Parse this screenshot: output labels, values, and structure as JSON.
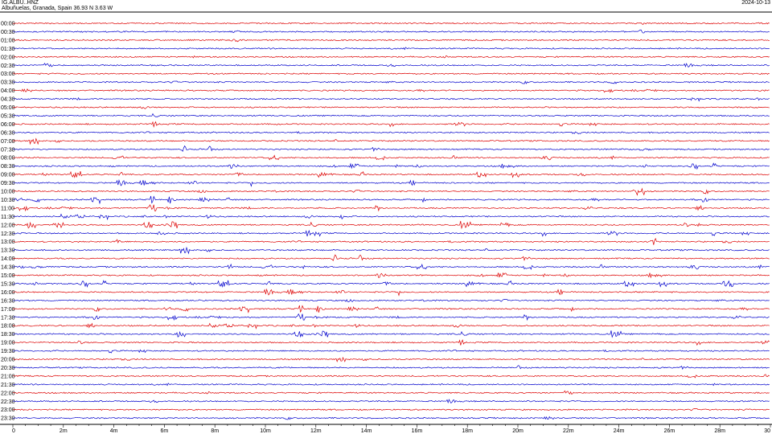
{
  "header": {
    "station": "IG.ALBU..HNZ",
    "location": "Albuñuelas, Granada, Spain  36.93 N 3.63 W",
    "date": "2024-10-13"
  },
  "colors": {
    "even_row": "#dd0000",
    "odd_row": "#0000cc",
    "frame": "#000000"
  },
  "chart_data": {
    "type": "line",
    "title": "",
    "row_labels": [
      "00:00",
      "00:30",
      "01:00",
      "01:30",
      "02:00",
      "02:30",
      "03:00",
      "03:30",
      "04:00",
      "04:30",
      "05:00",
      "05:30",
      "06:00",
      "06:30",
      "07:00",
      "07:30",
      "08:00",
      "08:30",
      "09:00",
      "09:30",
      "10:00",
      "10:30",
      "11:00",
      "11:30",
      "12:00",
      "12:30",
      "13:00",
      "13:30",
      "14:00",
      "14:30",
      "15:00",
      "15:30",
      "16:00",
      "16:30",
      "17:00",
      "17:30",
      "18:00",
      "18:30",
      "19:00",
      "19:30",
      "20:00",
      "20:30",
      "21:00",
      "21:30",
      "22:00",
      "22:30",
      "23:00",
      "23:30"
    ],
    "x_tick_labels": [
      "0",
      "2m",
      "4m",
      "6m",
      "8m",
      "10m",
      "12m",
      "14m",
      "16m",
      "18m",
      "20m",
      "22m",
      "24m",
      "26m",
      "28m",
      "30"
    ],
    "xlim_minutes": [
      0,
      30
    ],
    "activity": [
      0.1,
      0.1,
      0.1,
      0.1,
      0.1,
      0.1,
      0.14,
      0.18,
      0.18,
      0.2,
      0.25,
      0.3,
      0.35,
      0.4,
      0.45,
      0.45,
      0.45,
      0.5,
      0.55,
      0.55,
      0.6,
      0.6,
      0.55,
      0.55,
      0.55,
      0.5,
      0.5,
      0.55,
      0.55,
      0.55,
      0.6,
      0.6,
      0.6,
      0.55,
      0.55,
      0.55,
      0.5,
      0.45,
      0.4,
      0.35,
      0.18,
      0.15,
      0.15,
      0.12,
      0.1,
      0.1,
      0.1,
      0.1
    ]
  }
}
